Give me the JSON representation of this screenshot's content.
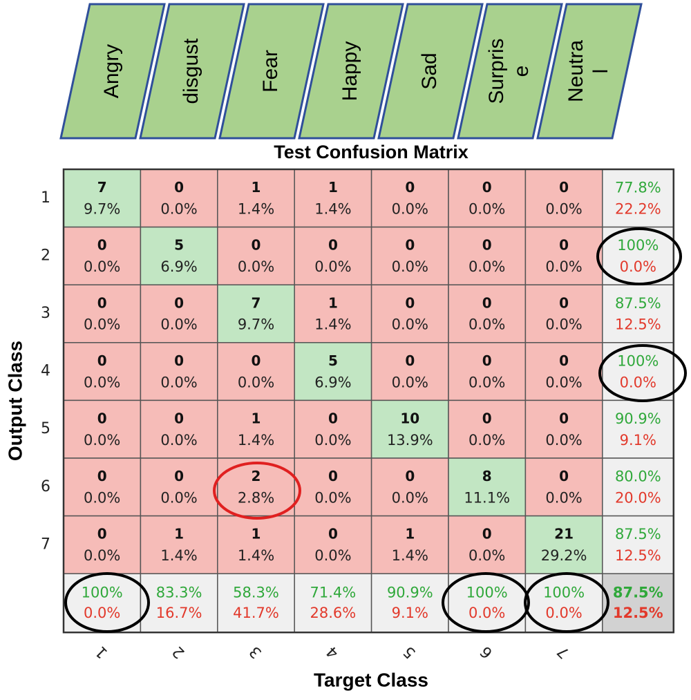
{
  "chart_data": {
    "type": "confusion_matrix",
    "title": "Test Confusion Matrix",
    "xlabel": "Target Class",
    "ylabel": "Output Class",
    "class_names": [
      [
        "Angry"
      ],
      [
        "disgust"
      ],
      [
        "Fear"
      ],
      [
        "Happy"
      ],
      [
        "Sad"
      ],
      [
        "Surpris",
        "e"
      ],
      [
        "Neutra",
        "l"
      ]
    ],
    "classes": [
      "1",
      "2",
      "3",
      "4",
      "5",
      "6",
      "7"
    ],
    "counts": [
      [
        7,
        0,
        1,
        1,
        0,
        0,
        0
      ],
      [
        0,
        5,
        0,
        0,
        0,
        0,
        0
      ],
      [
        0,
        0,
        7,
        1,
        0,
        0,
        0
      ],
      [
        0,
        0,
        0,
        5,
        0,
        0,
        0
      ],
      [
        0,
        0,
        1,
        0,
        10,
        0,
        0
      ],
      [
        0,
        0,
        2,
        0,
        0,
        8,
        0
      ],
      [
        0,
        1,
        1,
        0,
        1,
        0,
        21
      ]
    ],
    "percents": [
      [
        9.7,
        0.0,
        1.4,
        1.4,
        0.0,
        0.0,
        0.0
      ],
      [
        0.0,
        6.9,
        0.0,
        0.0,
        0.0,
        0.0,
        0.0
      ],
      [
        0.0,
        0.0,
        9.7,
        1.4,
        0.0,
        0.0,
        0.0
      ],
      [
        0.0,
        0.0,
        0.0,
        6.9,
        0.0,
        0.0,
        0.0
      ],
      [
        0.0,
        0.0,
        1.4,
        0.0,
        13.9,
        0.0,
        0.0
      ],
      [
        0.0,
        0.0,
        2.8,
        0.0,
        0.0,
        11.1,
        0.0
      ],
      [
        0.0,
        1.4,
        1.4,
        0.0,
        1.4,
        0.0,
        29.2
      ]
    ],
    "percent_labels": [
      [
        "9.7%",
        "0.0%",
        "1.4%",
        "1.4%",
        "0.0%",
        "0.0%",
        "0.0%"
      ],
      [
        "0.0%",
        "6.9%",
        "0.0%",
        "0.0%",
        "0.0%",
        "0.0%",
        "0.0%"
      ],
      [
        "0.0%",
        "0.0%",
        "9.7%",
        "1.4%",
        "0.0%",
        "0.0%",
        "0.0%"
      ],
      [
        "0.0%",
        "0.0%",
        "0.0%",
        "6.9%",
        "0.0%",
        "0.0%",
        "0.0%"
      ],
      [
        "0.0%",
        "0.0%",
        "1.4%",
        "0.0%",
        "13.9%",
        "0.0%",
        "0.0%"
      ],
      [
        "0.0%",
        "0.0%",
        "2.8%",
        "0.0%",
        "0.0%",
        "11.1%",
        "0.0%"
      ],
      [
        "0.0%",
        "1.4%",
        "1.4%",
        "0.0%",
        "1.4%",
        "0.0%",
        "29.2%"
      ]
    ],
    "row_correct": [
      77.8,
      100,
      87.5,
      100,
      90.9,
      80.0,
      87.5
    ],
    "row_correct_labels": [
      "77.8%",
      "100%",
      "87.5%",
      "100%",
      "90.9%",
      "80.0%",
      "87.5%"
    ],
    "row_wrong": [
      22.2,
      0.0,
      12.5,
      0.0,
      9.1,
      20.0,
      12.5
    ],
    "row_wrong_labels": [
      "22.2%",
      "0.0%",
      "12.5%",
      "0.0%",
      "9.1%",
      "20.0%",
      "12.5%"
    ],
    "col_correct": [
      100,
      83.3,
      58.3,
      71.4,
      90.9,
      100,
      100
    ],
    "col_correct_labels": [
      "100%",
      "83.3%",
      "58.3%",
      "71.4%",
      "90.9%",
      "100%",
      "100%"
    ],
    "col_wrong": [
      0.0,
      16.7,
      41.7,
      28.6,
      9.1,
      0.0,
      0.0
    ],
    "col_wrong_labels": [
      "0.0%",
      "16.7%",
      "41.7%",
      "28.6%",
      "9.1%",
      "0.0%",
      "0.0%"
    ],
    "overall_correct": 87.5,
    "overall_correct_label": "87.5%",
    "overall_wrong": 12.5,
    "overall_wrong_label": "12.5%",
    "diagonal_color": "#c2e6c3",
    "off_diagonal_color": "#f6bcb8",
    "summary_color": "#f0f0f0",
    "overall_color": "#d2d2d2",
    "label_box_color": "#a9d18e",
    "correct_text_color": "#2fa83a",
    "wrong_text_color": "#e2392b"
  }
}
